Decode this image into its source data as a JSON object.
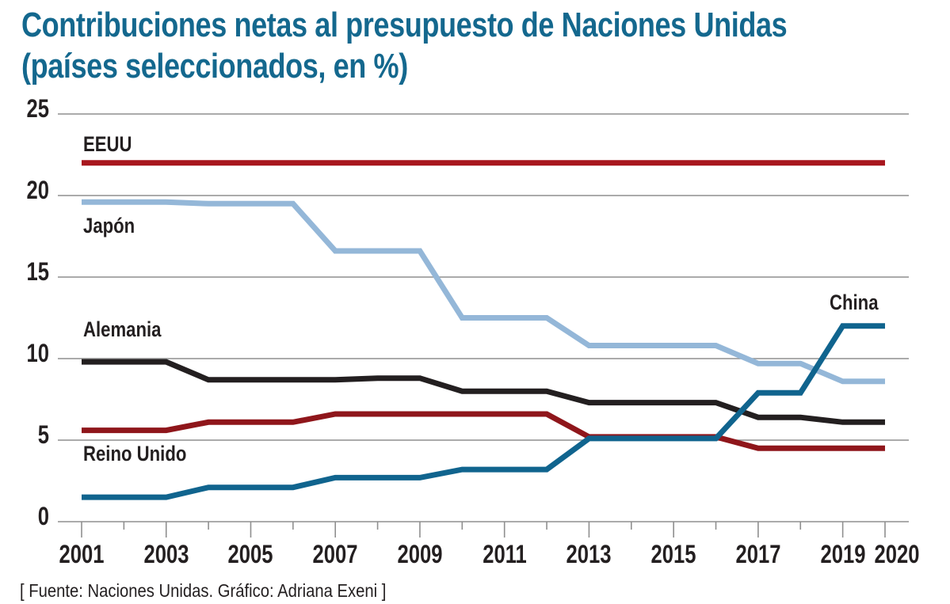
{
  "title": {
    "line1": "Contribuciones netas al presupuesto de Naciones Unidas",
    "line2": "(países seleccionados, en %)"
  },
  "source": "[ Fuente: Naciones Unidas. Gráfico: Adriana Exeni ]",
  "colors": {
    "title": "#14688e",
    "text": "#231f20",
    "grid": "#8f8f8f",
    "background": "#ffffff"
  },
  "chart_data": {
    "type": "line",
    "title": "Contribuciones netas al presupuesto de Naciones Unidas (países seleccionados, en %)",
    "xlabel": "",
    "ylabel": "",
    "ylim": [
      0,
      25
    ],
    "y_ticks": [
      0,
      5,
      10,
      15,
      20,
      25
    ],
    "grid": "horizontal",
    "legend_position": "inline-labels",
    "x": [
      2001,
      2002,
      2003,
      2004,
      2005,
      2006,
      2007,
      2008,
      2009,
      2010,
      2011,
      2012,
      2013,
      2014,
      2015,
      2016,
      2017,
      2018,
      2019,
      2020
    ],
    "x_tick_labels": [
      2001,
      2003,
      2005,
      2007,
      2009,
      2011,
      2013,
      2015,
      2017,
      2019,
      2020
    ],
    "series": [
      {
        "name": "EEUU",
        "color": "#a8171e",
        "values": [
          22,
          22,
          22,
          22,
          22,
          22,
          22,
          22,
          22,
          22,
          22,
          22,
          22,
          22,
          22,
          22,
          22,
          22,
          22,
          22
        ]
      },
      {
        "name": "Japón",
        "color": "#94b7d8",
        "values": [
          19.6,
          19.6,
          19.6,
          19.5,
          19.5,
          19.5,
          16.6,
          16.6,
          16.6,
          12.5,
          12.5,
          12.5,
          10.8,
          10.8,
          10.8,
          10.8,
          9.7,
          9.7,
          8.6,
          8.6
        ]
      },
      {
        "name": "Alemania",
        "color": "#231f20",
        "values": [
          9.8,
          9.8,
          9.8,
          8.7,
          8.7,
          8.7,
          8.7,
          8.8,
          8.8,
          8.0,
          8.0,
          8.0,
          7.3,
          7.3,
          7.3,
          7.3,
          6.4,
          6.4,
          6.1,
          6.1
        ]
      },
      {
        "name": "Reino Unido",
        "color": "#8f161b",
        "values": [
          5.6,
          5.6,
          5.6,
          6.1,
          6.1,
          6.1,
          6.6,
          6.6,
          6.6,
          6.6,
          6.6,
          6.6,
          5.2,
          5.2,
          5.2,
          5.2,
          4.5,
          4.5,
          4.5,
          4.5
        ]
      },
      {
        "name": "China",
        "color": "#10648e",
        "values": [
          1.5,
          1.5,
          1.5,
          2.1,
          2.1,
          2.1,
          2.7,
          2.7,
          2.7,
          3.2,
          3.2,
          3.2,
          5.1,
          5.1,
          5.1,
          5.1,
          7.9,
          7.9,
          12,
          12
        ]
      }
    ]
  }
}
